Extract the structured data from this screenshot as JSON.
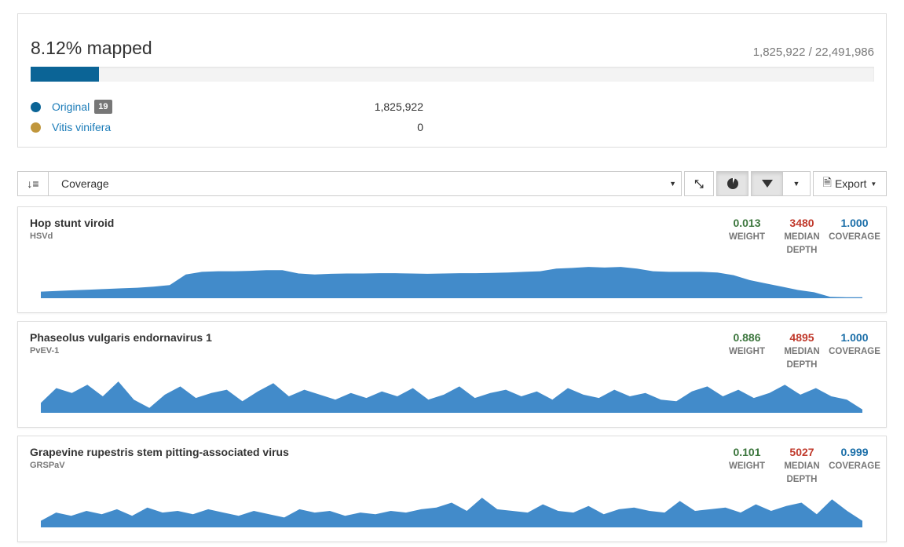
{
  "summary": {
    "title": "8.12% mapped",
    "ratio": "1,825,922 / 22,491,986",
    "progress_percent": 8.12,
    "bar_color": "#0b6496",
    "legend": [
      {
        "name": "Original",
        "badge": "19",
        "value": "1,825,922",
        "color": "#0b6496"
      },
      {
        "name": "Vitis vinifera",
        "value": "0",
        "color": "#c0963c"
      }
    ]
  },
  "toolbar": {
    "sort_icon": "sort-amount-down-icon",
    "sort_select": "Coverage",
    "compress_icon": "compress-icon",
    "pie_icon": "pie-chart-icon",
    "filter_icon": "filter-icon",
    "export_label": "Export"
  },
  "colors": {
    "weight": "#3c763d",
    "depth": "#c0392b",
    "coverage": "#1a6ea8",
    "profile": "#428bca"
  },
  "labels": {
    "weight": "WEIGHT",
    "depth_1": "MEDIAN",
    "depth_2": "DEPTH",
    "coverage": "COVERAGE"
  },
  "hits": [
    {
      "name": "Hop stunt viroid",
      "abbr": "HSVd",
      "weight": "0.013",
      "depth": "3480",
      "coverage": "1.000",
      "profile": [
        0.2,
        0.22,
        0.24,
        0.26,
        0.28,
        0.3,
        0.32,
        0.35,
        0.4,
        0.72,
        0.8,
        0.82,
        0.82,
        0.83,
        0.85,
        0.85,
        0.75,
        0.72,
        0.74,
        0.75,
        0.75,
        0.76,
        0.76,
        0.75,
        0.74,
        0.75,
        0.76,
        0.76,
        0.77,
        0.78,
        0.8,
        0.82,
        0.9,
        0.92,
        0.95,
        0.93,
        0.95,
        0.9,
        0.82,
        0.8,
        0.8,
        0.8,
        0.78,
        0.7,
        0.55,
        0.45,
        0.35,
        0.25,
        0.18,
        0.04,
        0.03,
        0.03
      ]
    },
    {
      "name": "Phaseolus vulgaris endornavirus 1",
      "abbr": "PvEV-1",
      "weight": "0.886",
      "depth": "4895",
      "coverage": "1.000",
      "profile": [
        0.3,
        0.75,
        0.6,
        0.85,
        0.5,
        0.95,
        0.4,
        0.15,
        0.55,
        0.8,
        0.45,
        0.6,
        0.7,
        0.35,
        0.65,
        0.9,
        0.5,
        0.7,
        0.55,
        0.4,
        0.6,
        0.45,
        0.65,
        0.5,
        0.75,
        0.4,
        0.55,
        0.8,
        0.45,
        0.6,
        0.7,
        0.5,
        0.65,
        0.4,
        0.75,
        0.55,
        0.45,
        0.7,
        0.5,
        0.6,
        0.4,
        0.35,
        0.65,
        0.8,
        0.5,
        0.7,
        0.45,
        0.6,
        0.85,
        0.55,
        0.75,
        0.5,
        0.4,
        0.1
      ]
    },
    {
      "name": "Grapevine rupestris stem pitting-associated virus",
      "abbr": "GRSPaV",
      "weight": "0.101",
      "depth": "5027",
      "coverage": "0.999",
      "profile": [
        0.2,
        0.45,
        0.35,
        0.5,
        0.4,
        0.55,
        0.35,
        0.6,
        0.45,
        0.5,
        0.4,
        0.55,
        0.45,
        0.35,
        0.5,
        0.4,
        0.3,
        0.55,
        0.45,
        0.5,
        0.35,
        0.45,
        0.4,
        0.5,
        0.45,
        0.55,
        0.6,
        0.75,
        0.5,
        0.9,
        0.55,
        0.5,
        0.45,
        0.7,
        0.5,
        0.45,
        0.65,
        0.4,
        0.55,
        0.6,
        0.5,
        0.45,
        0.8,
        0.5,
        0.55,
        0.6,
        0.45,
        0.7,
        0.5,
        0.65,
        0.75,
        0.4,
        0.85,
        0.5,
        0.2
      ]
    }
  ]
}
